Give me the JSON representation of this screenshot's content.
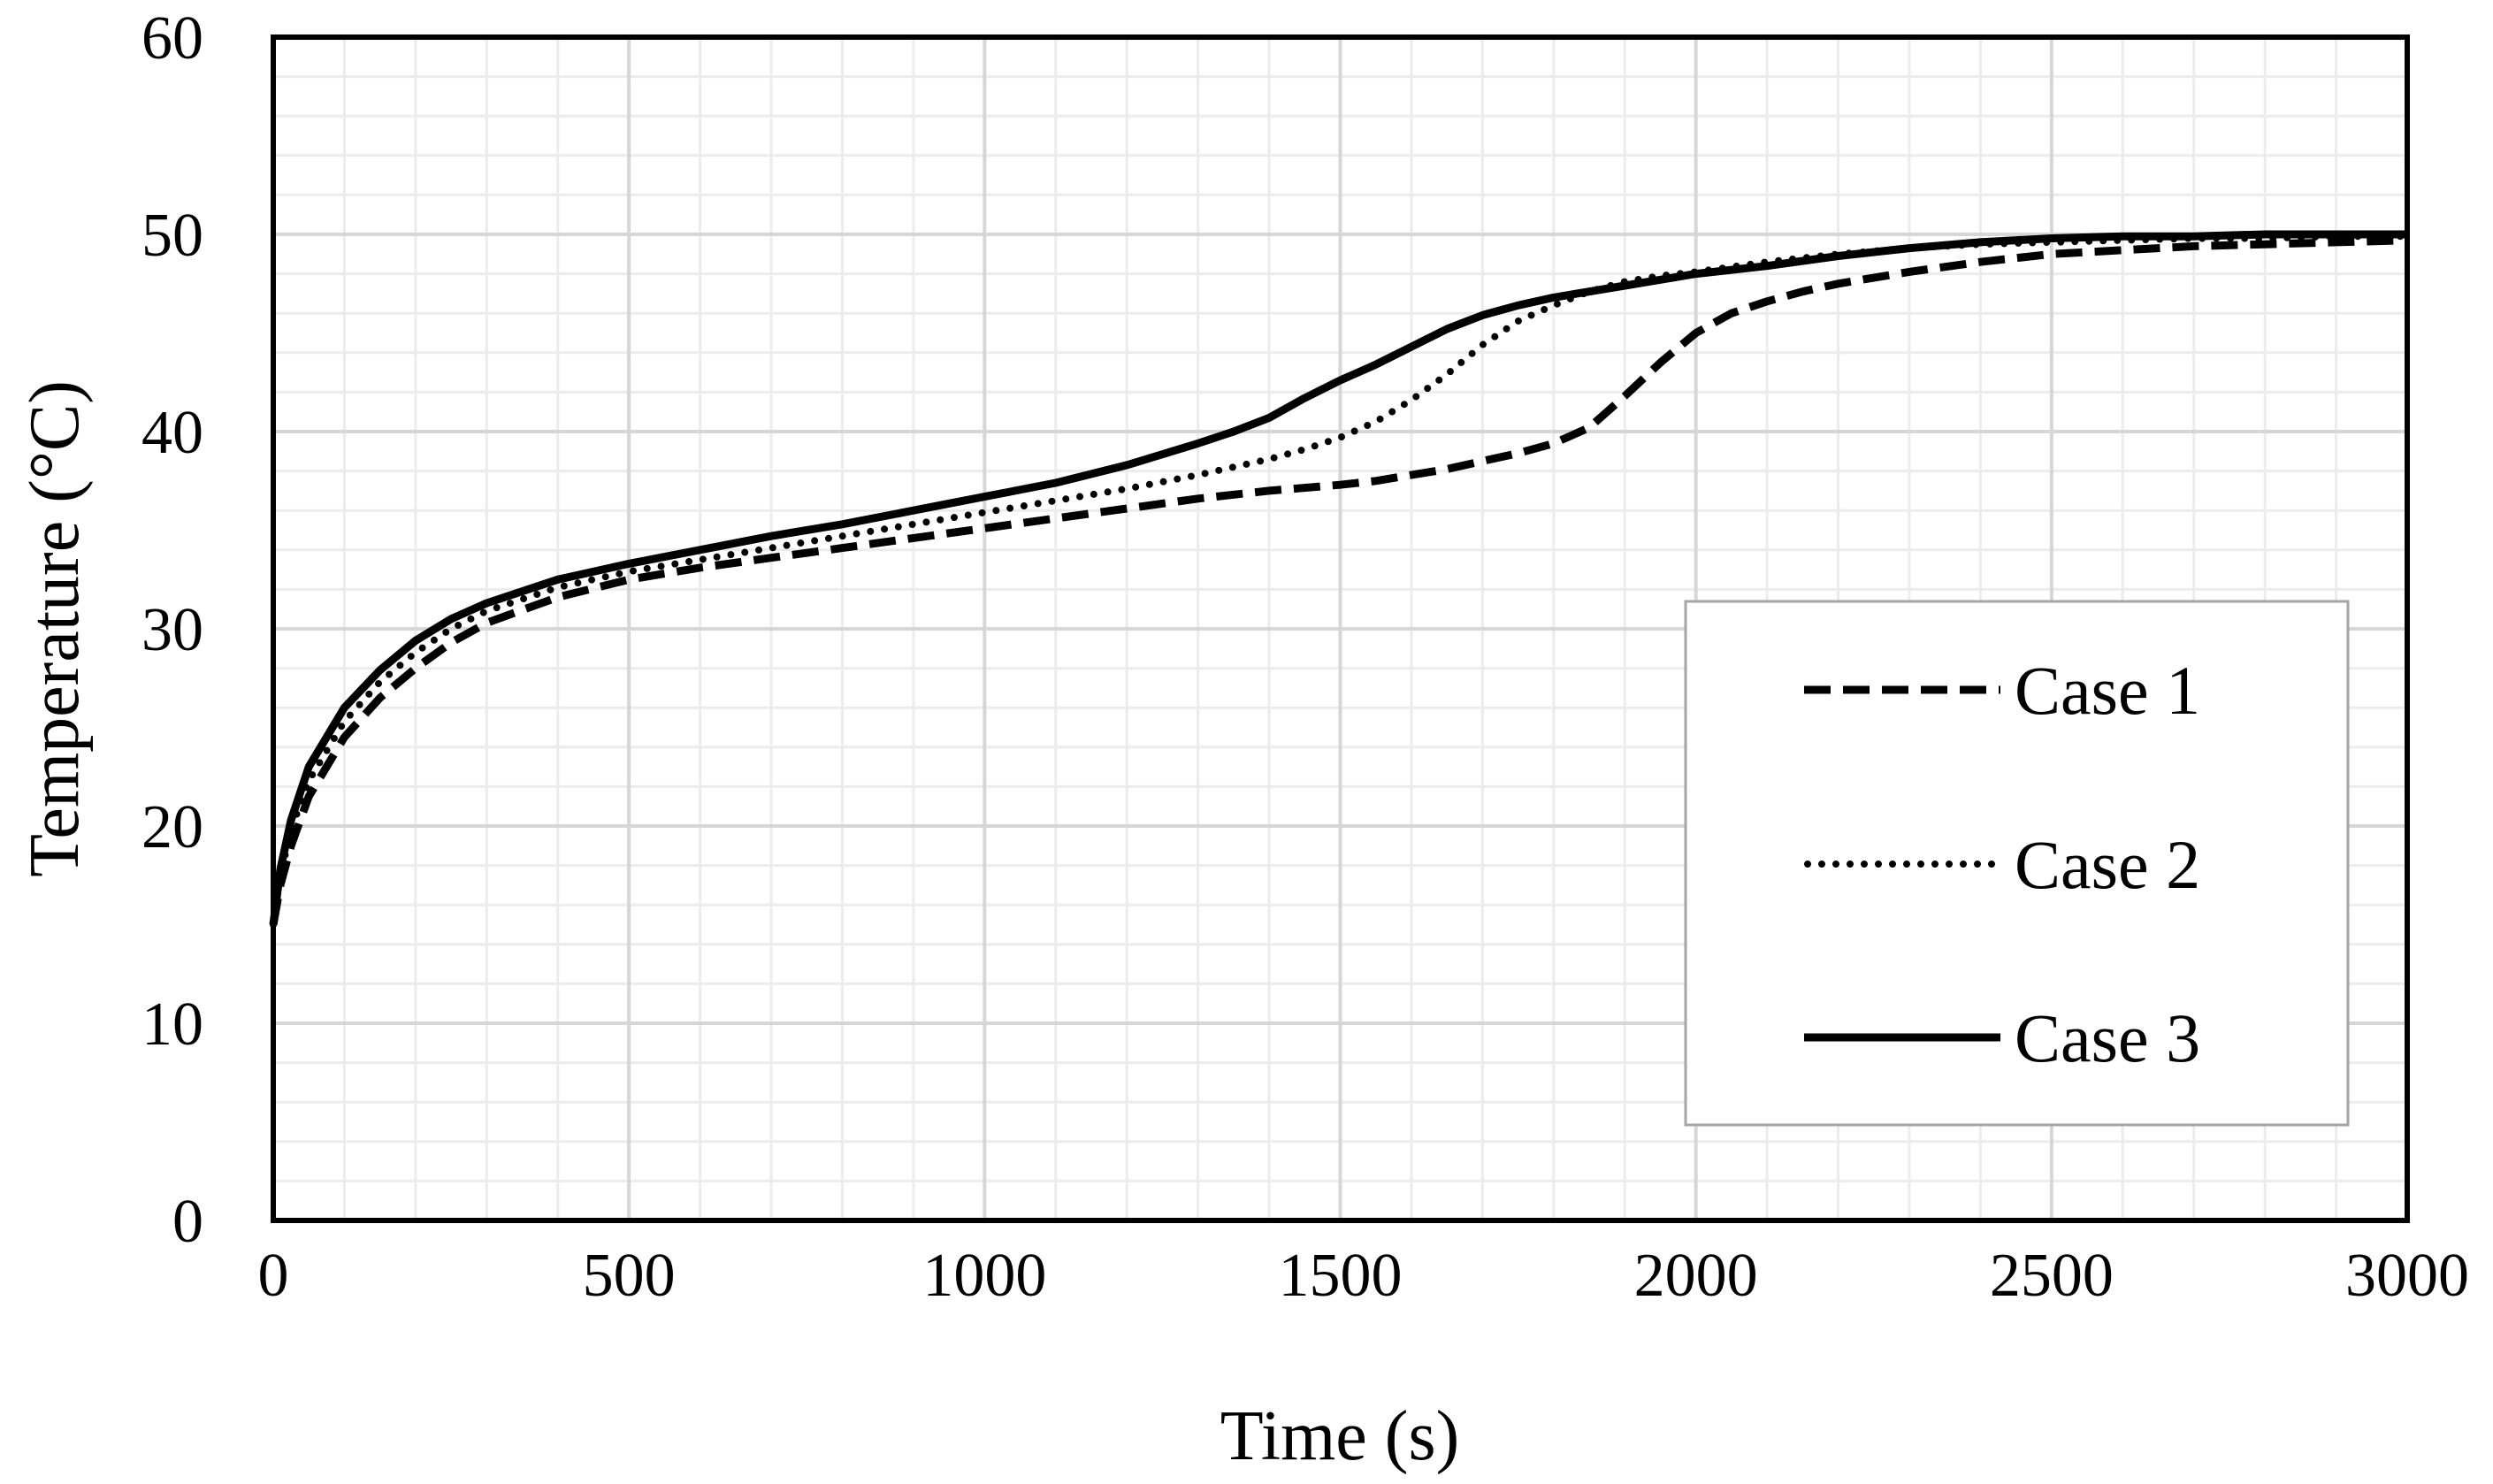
{
  "chart_data": {
    "type": "line",
    "title": "",
    "xlabel": "Time (s)",
    "ylabel": "Temperature (°C)",
    "xlim": [
      0,
      3000
    ],
    "ylim": [
      0,
      60
    ],
    "x_ticks": [
      0,
      500,
      1000,
      1500,
      2000,
      2500,
      3000
    ],
    "y_ticks": [
      0,
      10,
      20,
      30,
      40,
      50,
      60
    ],
    "x_minor_step": 100,
    "y_minor_step": 2,
    "grid": true,
    "legend_position": "right",
    "series": [
      {
        "name": "Case 1",
        "style": "dashed",
        "color": "#000000",
        "x": [
          0,
          10,
          25,
          50,
          100,
          150,
          200,
          250,
          300,
          400,
          500,
          600,
          700,
          800,
          900,
          1000,
          1100,
          1200,
          1300,
          1400,
          1500,
          1550,
          1600,
          1650,
          1700,
          1750,
          1800,
          1850,
          1900,
          1950,
          2000,
          2050,
          2100,
          2150,
          2200,
          2300,
          2400,
          2500,
          2600,
          2700,
          2800,
          2900,
          3000
        ],
        "y": [
          15,
          17,
          19,
          21.5,
          24.5,
          26.5,
          28,
          29.3,
          30.3,
          31.6,
          32.5,
          33.1,
          33.6,
          34.1,
          34.6,
          35.1,
          35.6,
          36.1,
          36.6,
          37.0,
          37.3,
          37.5,
          37.8,
          38.1,
          38.5,
          38.9,
          39.4,
          40.2,
          41.8,
          43.5,
          45.0,
          46.0,
          46.6,
          47.1,
          47.5,
          48.1,
          48.6,
          49.0,
          49.2,
          49.4,
          49.5,
          49.6,
          49.7
        ]
      },
      {
        "name": "Case 2",
        "style": "dotted",
        "color": "#000000",
        "x": [
          0,
          10,
          25,
          50,
          100,
          150,
          200,
          250,
          300,
          400,
          500,
          600,
          700,
          800,
          900,
          1000,
          1100,
          1200,
          1300,
          1400,
          1450,
          1500,
          1550,
          1600,
          1650,
          1700,
          1750,
          1800,
          1850,
          1900,
          1950,
          2000,
          2100,
          2200,
          2300,
          2400,
          2500,
          2600,
          2700,
          2800,
          2900,
          3000
        ],
        "y": [
          15,
          17.5,
          19.8,
          22.3,
          25.3,
          27.3,
          28.8,
          30.0,
          30.9,
          32.1,
          32.9,
          33.5,
          34.1,
          34.7,
          35.3,
          35.9,
          36.5,
          37.1,
          37.8,
          38.6,
          39.1,
          39.7,
          40.5,
          41.6,
          42.9,
          44.4,
          45.6,
          46.4,
          47.1,
          47.6,
          47.9,
          48.1,
          48.6,
          49.0,
          49.3,
          49.5,
          49.6,
          49.7,
          49.8,
          49.8,
          49.9,
          49.9
        ]
      },
      {
        "name": "Case 3",
        "style": "solid",
        "color": "#000000",
        "x": [
          0,
          10,
          25,
          50,
          100,
          150,
          200,
          250,
          300,
          400,
          500,
          600,
          700,
          800,
          900,
          1000,
          1100,
          1200,
          1300,
          1350,
          1400,
          1450,
          1500,
          1550,
          1600,
          1650,
          1700,
          1750,
          1800,
          1850,
          1900,
          1950,
          2000,
          2100,
          2200,
          2300,
          2400,
          2500,
          2600,
          2700,
          2800,
          2900,
          3000
        ],
        "y": [
          15,
          17.8,
          20.3,
          23.0,
          26.0,
          27.9,
          29.4,
          30.5,
          31.3,
          32.5,
          33.3,
          34.0,
          34.7,
          35.3,
          36.0,
          36.7,
          37.4,
          38.3,
          39.4,
          40.0,
          40.7,
          41.7,
          42.6,
          43.4,
          44.3,
          45.2,
          45.9,
          46.4,
          46.8,
          47.1,
          47.4,
          47.7,
          48.0,
          48.4,
          48.9,
          49.3,
          49.6,
          49.8,
          49.9,
          49.9,
          50.0,
          50.0,
          50.0
        ]
      }
    ]
  }
}
